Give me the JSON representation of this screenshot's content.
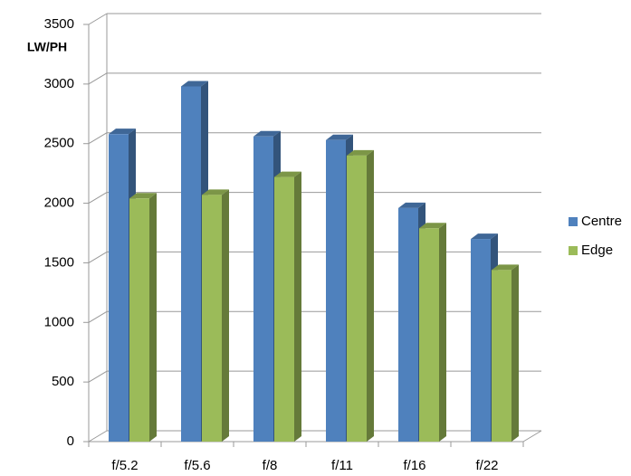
{
  "chart_data": {
    "type": "bar3d",
    "y_label": "LW/PH",
    "categories": [
      "f/5.2",
      "f/5.6",
      "f/8",
      "f/11",
      "f/16",
      "f/22"
    ],
    "series": [
      {
        "name": "Centre",
        "color": "#4f81bd",
        "values": [
          2580,
          2980,
          2560,
          2530,
          1960,
          1700
        ]
      },
      {
        "name": "Edge",
        "color": "#9bbb59",
        "values": [
          2040,
          2070,
          2220,
          2400,
          1790,
          1440
        ]
      }
    ],
    "ylim": [
      0,
      3500
    ],
    "yticks": [
      0,
      500,
      1000,
      1500,
      2000,
      2500,
      3000,
      3500
    ],
    "grid": true,
    "legend": "right"
  }
}
